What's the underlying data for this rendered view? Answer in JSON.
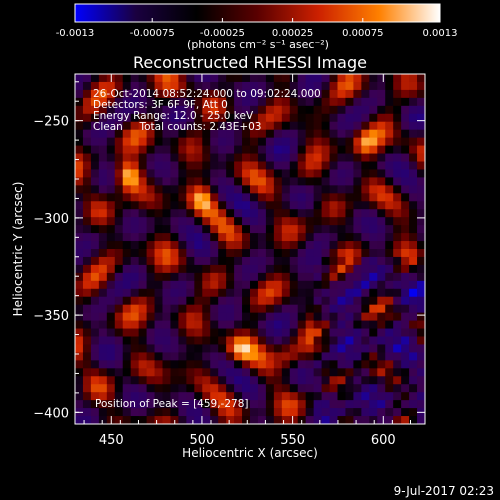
{
  "chart_data": {
    "type": "heatmap",
    "title": "Reconstructed RHESSI Image",
    "xlabel": "Heliocentric X (arcsec)",
    "ylabel": "Heliocentric Y (arcsec)",
    "xlim": [
      430,
      623
    ],
    "ylim": [
      -406,
      -226
    ],
    "x_ticks": [
      450,
      500,
      550,
      600
    ],
    "y_ticks": [
      -250,
      -300,
      -350,
      -400
    ],
    "annotations": [
      "26-Oct-2014 08:52:24.000 to 09:02:24.000",
      "Detectors: 3F 6F 9F, Att 0",
      "Energy Range: 12.0 - 25.0 keV",
      "Clean     Total counts: 2.43E+03"
    ],
    "peak_label": "Position of Peak = [459,-278]",
    "colorbar": {
      "min": -0.0013,
      "max": 0.0013,
      "tick_labels": [
        "-0.0013",
        "-0.00075",
        "-0.00025",
        "0.00025",
        "0.00075",
        "0.0013"
      ],
      "unit_label": "(photons cm⁻² s⁻¹ asec⁻²)",
      "colors": [
        "#0000ff",
        "#1a0040",
        "#000000",
        "#5a0000",
        "#cc2000",
        "#ff8000",
        "#ffffff"
      ]
    },
    "peak": {
      "x": 459,
      "y": -278
    },
    "bright_sources": [
      {
        "x": 459,
        "y": -278
      },
      {
        "x": 520,
        "y": -368
      },
      {
        "x": 548,
        "y": -372
      },
      {
        "x": 500,
        "y": -290
      },
      {
        "x": 590,
        "y": -262
      }
    ]
  },
  "footer": {
    "date": "9-Jul-2017 02:23"
  }
}
